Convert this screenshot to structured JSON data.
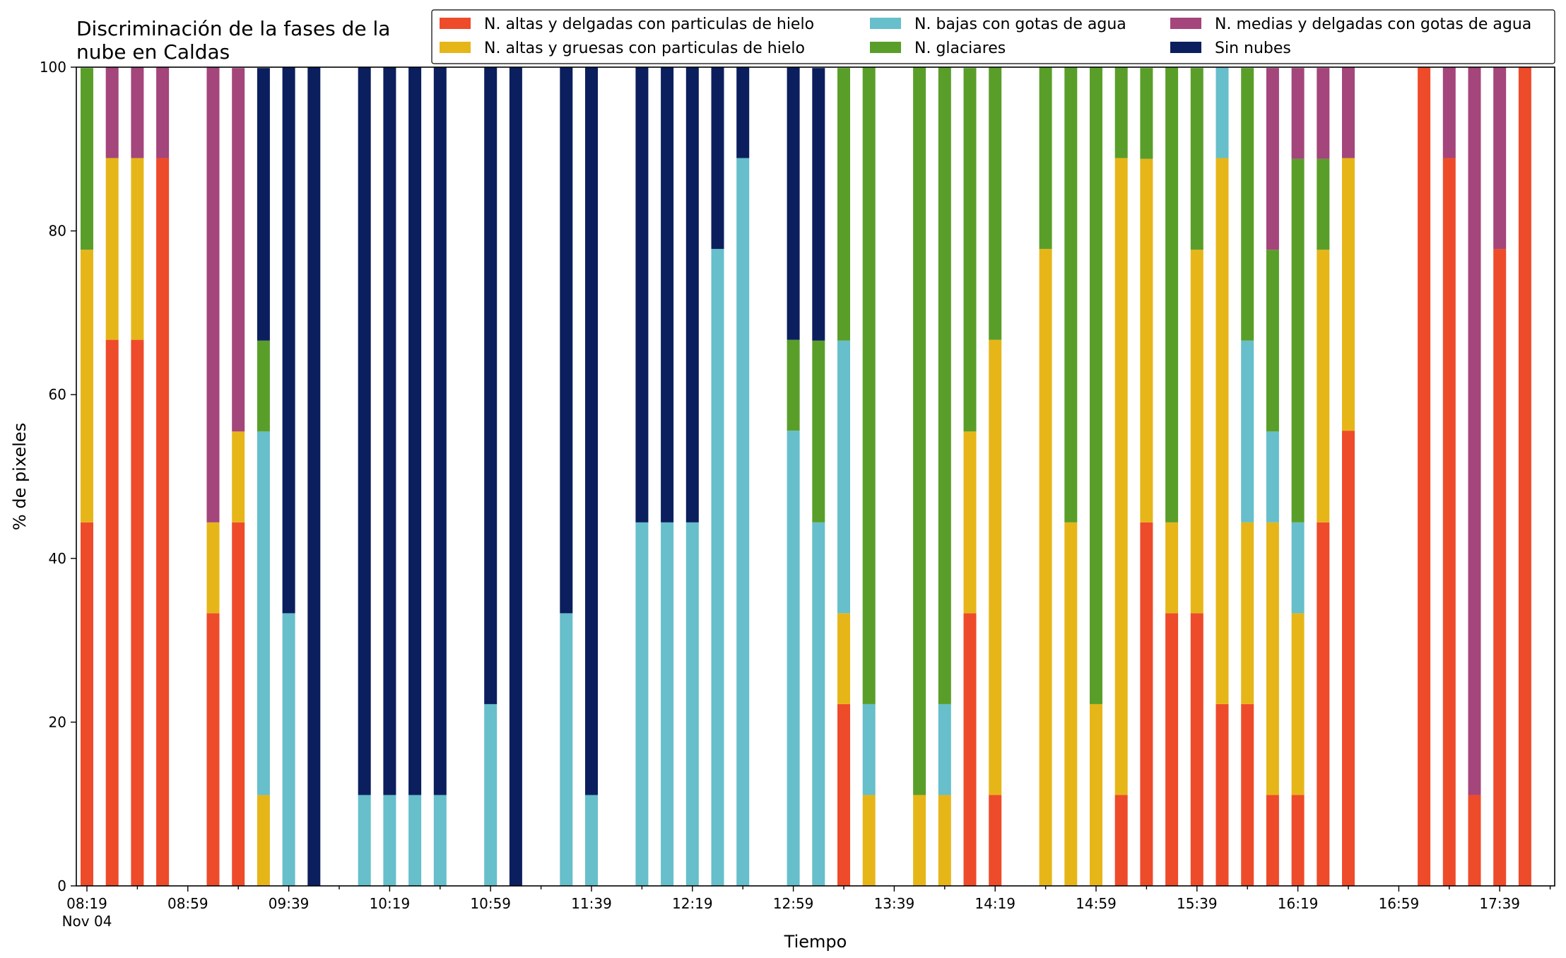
{
  "chart_data": {
    "type": "bar",
    "stacked": true,
    "title_lines": [
      "Discriminación de la fases de la",
      "nube en Caldas"
    ],
    "xlabel": "Tiempo",
    "ylabel": "% de pixeles",
    "ylim": [
      0,
      100
    ],
    "yticks": [
      "0",
      "20",
      "40",
      "60",
      "80",
      "100"
    ],
    "grid": false,
    "legend_position": "top-right",
    "x_start": "08:19",
    "x_interval_minutes": 10,
    "x_tick_labels": [
      "08:19",
      "08:59",
      "09:39",
      "10:19",
      "10:59",
      "11:39",
      "12:19",
      "12:59",
      "13:39",
      "14:19",
      "14:59",
      "15:39",
      "16:19",
      "16:59",
      "17:39"
    ],
    "x_date_label": "Nov 04",
    "x": [
      "08:19",
      "08:29",
      "08:39",
      "08:49",
      "08:59",
      "09:09",
      "09:19",
      "09:29",
      "09:39",
      "09:49",
      "09:59",
      "10:09",
      "10:19",
      "10:29",
      "10:39",
      "10:49",
      "10:59",
      "11:09",
      "11:19",
      "11:29",
      "11:39",
      "11:49",
      "11:59",
      "12:09",
      "12:19",
      "12:29",
      "12:39",
      "12:49",
      "12:59",
      "13:09",
      "13:19",
      "13:29",
      "13:39",
      "13:49",
      "13:59",
      "14:09",
      "14:19",
      "14:29",
      "14:39",
      "14:49",
      "14:59",
      "15:09",
      "15:19",
      "15:29",
      "15:39",
      "15:49",
      "15:59",
      "16:09",
      "16:19",
      "16:29",
      "16:39",
      "16:49",
      "16:59",
      "17:09",
      "17:19",
      "17:29",
      "17:39",
      "17:49"
    ],
    "series": [
      {
        "name": "N. altas y delgadas con particulas de hielo",
        "color": "#ee4b2b",
        "values": [
          44.4,
          66.7,
          66.7,
          88.9,
          null,
          33.3,
          44.4,
          0,
          0,
          0,
          null,
          0,
          0,
          0,
          0,
          null,
          0,
          0,
          null,
          0,
          0,
          null,
          0,
          0,
          0,
          0,
          0,
          null,
          0,
          0,
          22.2,
          0,
          null,
          0,
          0,
          33.3,
          11.1,
          null,
          0,
          0,
          0,
          11.1,
          44.4,
          33.3,
          33.3,
          22.2,
          22.2,
          11.1,
          11.1,
          44.4,
          55.6,
          null,
          null,
          100,
          88.9,
          11.1,
          77.8,
          100
        ]
      },
      {
        "name": "N. altas y gruesas con particulas de hielo",
        "color": "#e6b619",
        "values": [
          33.3,
          22.2,
          22.2,
          0,
          null,
          11.1,
          11.1,
          11.1,
          0,
          0,
          null,
          0,
          0,
          0,
          0,
          null,
          0,
          0,
          null,
          0,
          0,
          null,
          0,
          0,
          0,
          0,
          0,
          null,
          0,
          0,
          11.1,
          11.1,
          null,
          11.1,
          11.1,
          22.2,
          55.6,
          null,
          77.8,
          44.4,
          22.2,
          77.8,
          44.4,
          11.1,
          44.4,
          66.7,
          22.2,
          33.3,
          22.2,
          33.3,
          33.3,
          null,
          null,
          0,
          0,
          0,
          0,
          0
        ]
      },
      {
        "name": "N. bajas con gotas de agua",
        "color": "#66bfcb",
        "values": [
          0,
          0,
          0,
          0,
          null,
          0,
          0,
          44.4,
          33.3,
          0,
          null,
          11.1,
          11.1,
          11.1,
          11.1,
          null,
          22.2,
          0,
          null,
          33.3,
          11.1,
          null,
          44.4,
          44.4,
          44.4,
          77.8,
          88.9,
          null,
          55.6,
          44.4,
          33.3,
          11.1,
          null,
          0,
          11.1,
          0,
          0,
          null,
          0,
          0,
          0,
          0,
          0,
          0,
          0,
          11.1,
          22.2,
          11.1,
          11.1,
          0,
          0,
          null,
          null,
          0,
          0,
          0,
          0,
          0
        ]
      },
      {
        "name": "N. glaciares",
        "color": "#5a9e2a",
        "values": [
          22.2,
          0,
          0,
          0,
          null,
          0,
          0,
          11.1,
          0,
          0,
          null,
          0,
          0,
          0,
          0,
          null,
          0,
          0,
          null,
          0,
          0,
          null,
          0,
          0,
          0,
          0,
          0,
          null,
          11.1,
          22.2,
          33.3,
          77.8,
          null,
          88.9,
          77.8,
          44.4,
          33.3,
          null,
          22.2,
          55.6,
          77.8,
          11.1,
          11.1,
          55.6,
          22.2,
          0,
          33.3,
          22.2,
          44.4,
          11.1,
          0,
          null,
          null,
          0,
          0,
          0,
          0,
          0
        ]
      },
      {
        "name": "N. medias y delgadas con gotas de agua",
        "color": "#a4457b",
        "values": [
          0,
          11.1,
          11.1,
          11.1,
          null,
          55.6,
          44.4,
          0,
          0,
          0,
          null,
          0,
          0,
          0,
          0,
          null,
          0,
          0,
          null,
          0,
          0,
          null,
          0,
          0,
          0,
          0,
          0,
          null,
          0,
          0,
          0,
          0,
          null,
          0,
          0,
          0,
          0,
          null,
          0,
          0,
          0,
          0,
          0,
          0,
          0,
          0,
          0,
          22.2,
          11.1,
          11.1,
          11.1,
          null,
          null,
          0,
          11.1,
          88.9,
          22.2,
          0
        ]
      },
      {
        "name": "Sin nubes",
        "color": "#0b1f5e",
        "values": [
          0,
          0,
          0,
          0,
          null,
          0,
          0,
          33.3,
          66.7,
          100,
          null,
          88.9,
          88.9,
          88.9,
          88.9,
          null,
          77.8,
          100,
          null,
          66.7,
          88.9,
          null,
          55.6,
          55.6,
          55.6,
          22.2,
          11.1,
          null,
          33.3,
          33.3,
          0,
          0,
          null,
          0,
          0,
          0,
          0,
          null,
          0,
          0,
          0,
          0,
          0,
          0,
          0,
          0,
          0,
          0,
          0,
          0,
          0,
          null,
          null,
          0,
          0,
          0,
          0,
          0
        ]
      }
    ]
  }
}
